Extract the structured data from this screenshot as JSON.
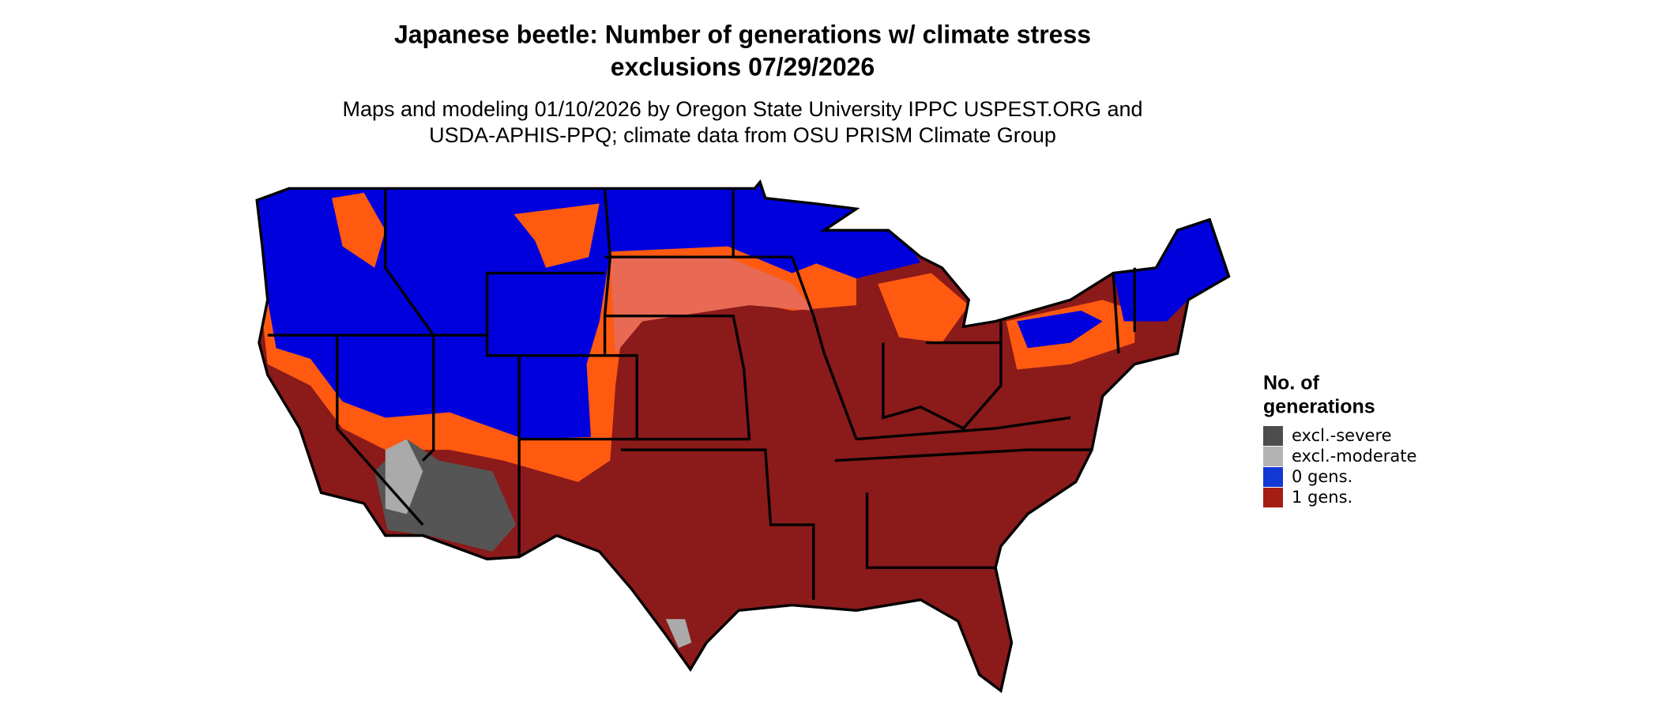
{
  "title": [
    "Japanese beetle: Number of generations w/ climate stress",
    "exclusions 07/29/2026"
  ],
  "subtitle": [
    "Maps and modeling 01/10/2026 by Oregon State University IPPC USPEST.ORG and",
    "USDA-APHIS-PPQ; climate data from OSU PRISM Climate Group"
  ],
  "legend": {
    "title": [
      "No. of",
      "generations"
    ],
    "items": [
      {
        "label": "excl.-severe",
        "color": "#4d4d4d"
      },
      {
        "label": "excl.-moderate",
        "color": "#b3b3b3"
      },
      {
        "label": "0 gens.",
        "color": "#1238d6"
      },
      {
        "label": "1 gens.",
        "color": "#a51e14"
      }
    ]
  }
}
